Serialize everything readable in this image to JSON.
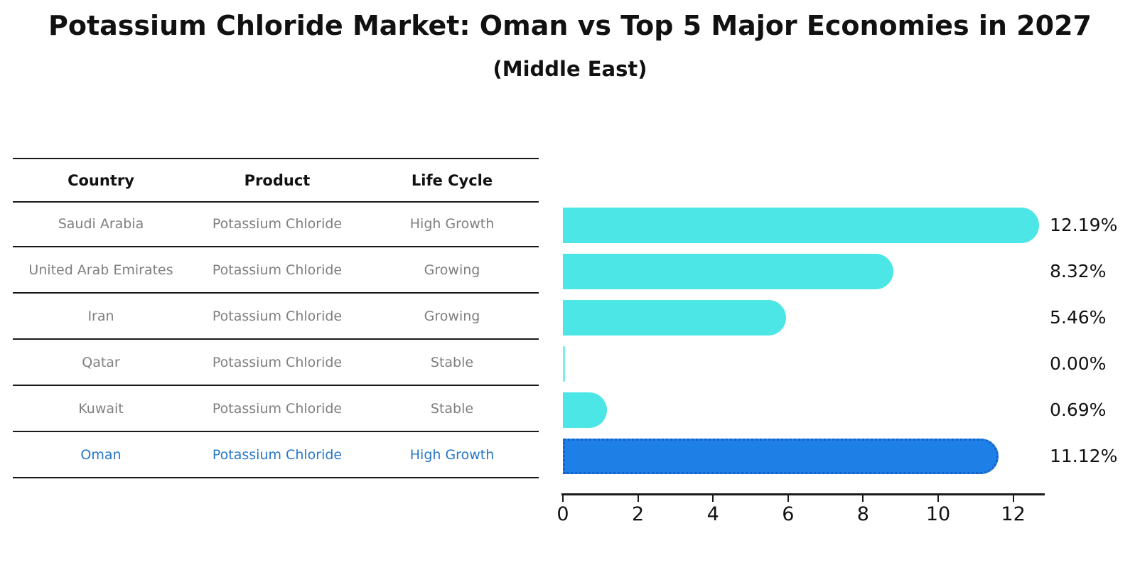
{
  "title": "Potassium Chloride Market: Oman vs Top 5 Major Economies in 2027",
  "subtitle": "(Middle East)",
  "table": {
    "columns": [
      "Country",
      "Product",
      "Life Cycle"
    ],
    "rows": [
      {
        "country": "Saudi Arabia",
        "product": "Potassium Chloride",
        "life_cycle": "High Growth",
        "highlight": false
      },
      {
        "country": "United Arab Emirates",
        "product": "Potassium Chloride",
        "life_cycle": "Growing",
        "highlight": false
      },
      {
        "country": "Iran",
        "product": "Potassium Chloride",
        "life_cycle": "Growing",
        "highlight": false
      },
      {
        "country": "Qatar",
        "product": "Potassium Chloride",
        "life_cycle": "Stable",
        "highlight": false
      },
      {
        "country": "Kuwait",
        "product": "Potassium Chloride",
        "life_cycle": "Stable",
        "highlight": false
      },
      {
        "country": "Oman",
        "product": "Potassium Chloride",
        "life_cycle": "High Growth",
        "highlight": true
      }
    ]
  },
  "chart_data": {
    "type": "bar",
    "orientation": "horizontal",
    "categories": [
      "Saudi Arabia",
      "United Arab Emirates",
      "Iran",
      "Qatar",
      "Kuwait",
      "Oman"
    ],
    "values": [
      12.19,
      8.32,
      5.46,
      0.0,
      0.69,
      11.12
    ],
    "value_labels": [
      "12.19%",
      "8.32%",
      "5.46%",
      "0.00%",
      "0.69%",
      "11.12%"
    ],
    "highlight_index": 5,
    "x_ticks": [
      "0",
      "2",
      "4",
      "6",
      "8",
      "10",
      "12"
    ],
    "xlim": [
      0,
      12.8
    ],
    "grid": false,
    "legend": "none",
    "bar_color": "#4DE6E6",
    "highlight_bar_color": "#1E80E6",
    "highlight_border_color": "#1462C8",
    "highlight_text_color": "#2878C8",
    "table_text_color": "#7F7F7F"
  }
}
